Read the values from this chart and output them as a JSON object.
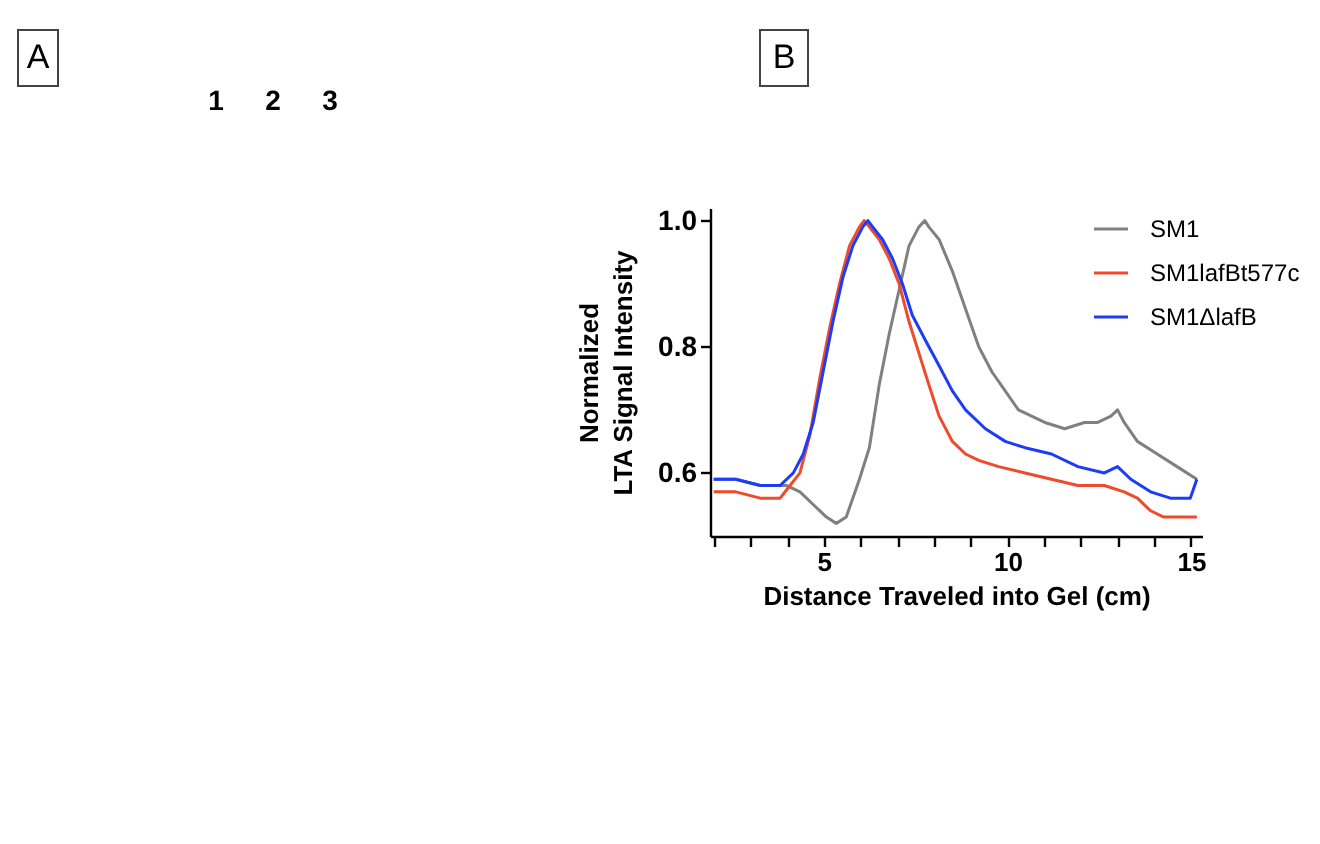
{
  "chart_data": [
    {
      "type": "other",
      "title": "A",
      "annotations": [
        "1",
        "2",
        "3"
      ]
    },
    {
      "type": "line",
      "title": "B",
      "xlabel": "Distance Traveled into Gel (cm)",
      "ylabel": "Normalized LTA Signal Intensity",
      "xlim": [
        1.9,
        15.3
      ],
      "ylim": [
        0.5,
        1.02
      ],
      "xticks": [
        {
          "value": 2,
          "label": null
        },
        {
          "value": 3,
          "label": null
        },
        {
          "value": 4,
          "label": null
        },
        5,
        {
          "value": 6,
          "label": null
        },
        {
          "value": 7,
          "label": null
        },
        {
          "value": 8,
          "label": null
        },
        {
          "value": 9,
          "label": null
        },
        10,
        {
          "value": 11,
          "label": null
        },
        {
          "value": 12,
          "label": null
        },
        {
          "value": 13,
          "label": null
        },
        {
          "value": 14,
          "label": null
        },
        15
      ],
      "yticks": [
        0.6,
        0.8,
        {
          "value": 1.0,
          "label": "1.0"
        }
      ],
      "legend": "top right",
      "series": [
        {
          "name": "SM1",
          "color": "#808080",
          "x": [
            2.0,
            2.6,
            3.27,
            3.99,
            4.35,
            4.71,
            5.07,
            5.34,
            5.61,
            5.79,
            5.97,
            6.24,
            6.51,
            6.78,
            7.05,
            7.32,
            7.59,
            7.75,
            7.86,
            8.14,
            8.5,
            8.86,
            9.22,
            9.58,
            9.94,
            10.3,
            10.66,
            11.02,
            11.56,
            12.1,
            12.46,
            12.82,
            13.0,
            13.18,
            13.54,
            14.08,
            14.62,
            15.16
          ],
          "values": [
            0.59,
            0.59,
            0.58,
            0.58,
            0.57,
            0.55,
            0.53,
            0.52,
            0.53,
            0.56,
            0.59,
            0.64,
            0.74,
            0.82,
            0.89,
            0.96,
            0.99,
            1.0,
            0.99,
            0.97,
            0.92,
            0.86,
            0.8,
            0.76,
            0.73,
            0.7,
            0.69,
            0.68,
            0.67,
            0.68,
            0.68,
            0.69,
            0.7,
            0.68,
            0.65,
            0.63,
            0.61,
            0.59
          ]
        },
        {
          "name": "SM1lafBt577c",
          "color": "#ee4a2c",
          "x": [
            2.0,
            2.6,
            3.27,
            3.81,
            4.08,
            4.35,
            4.62,
            4.89,
            5.16,
            5.43,
            5.7,
            5.97,
            6.1,
            6.24,
            6.51,
            6.78,
            7.05,
            7.32,
            7.59,
            7.86,
            8.14,
            8.5,
            8.86,
            9.22,
            9.76,
            10.48,
            11.2,
            11.92,
            12.64,
            13.18,
            13.54,
            13.9,
            14.26,
            14.62,
            15.16
          ],
          "values": [
            0.57,
            0.57,
            0.56,
            0.56,
            0.58,
            0.6,
            0.66,
            0.75,
            0.83,
            0.9,
            0.96,
            0.99,
            1.0,
            0.99,
            0.97,
            0.94,
            0.9,
            0.84,
            0.79,
            0.74,
            0.69,
            0.65,
            0.63,
            0.62,
            0.61,
            0.6,
            0.59,
            0.58,
            0.58,
            0.57,
            0.56,
            0.54,
            0.53,
            0.53,
            0.53
          ]
        },
        {
          "name": "SM1ΔlafB",
          "color": "#1c3cf5",
          "x": [
            2.0,
            2.6,
            3.27,
            3.81,
            4.17,
            4.44,
            4.71,
            4.98,
            5.25,
            5.52,
            5.79,
            6.06,
            6.2,
            6.33,
            6.6,
            6.87,
            7.14,
            7.41,
            7.77,
            8.14,
            8.5,
            8.86,
            9.4,
            9.94,
            10.48,
            11.2,
            11.92,
            12.64,
            13.0,
            13.36,
            13.9,
            14.44,
            14.98,
            15.16
          ],
          "values": [
            0.59,
            0.59,
            0.58,
            0.58,
            0.6,
            0.63,
            0.68,
            0.76,
            0.84,
            0.91,
            0.96,
            0.99,
            1.0,
            0.99,
            0.97,
            0.94,
            0.9,
            0.85,
            0.81,
            0.77,
            0.73,
            0.7,
            0.67,
            0.65,
            0.64,
            0.63,
            0.61,
            0.6,
            0.61,
            0.59,
            0.57,
            0.56,
            0.56,
            0.59
          ]
        }
      ]
    }
  ]
}
